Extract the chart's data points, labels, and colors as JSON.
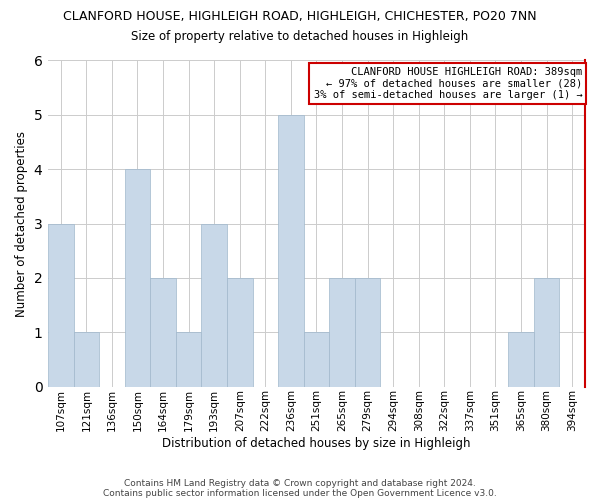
{
  "title": "CLANFORD HOUSE, HIGHLEIGH ROAD, HIGHLEIGH, CHICHESTER, PO20 7NN",
  "subtitle": "Size of property relative to detached houses in Highleigh",
  "xlabel": "Distribution of detached houses by size in Highleigh",
  "ylabel": "Number of detached properties",
  "bin_labels": [
    "107sqm",
    "121sqm",
    "136sqm",
    "150sqm",
    "164sqm",
    "179sqm",
    "193sqm",
    "207sqm",
    "222sqm",
    "236sqm",
    "251sqm",
    "265sqm",
    "279sqm",
    "294sqm",
    "308sqm",
    "322sqm",
    "337sqm",
    "351sqm",
    "365sqm",
    "380sqm",
    "394sqm"
  ],
  "bar_heights": [
    3,
    1,
    0,
    4,
    2,
    1,
    3,
    2,
    0,
    5,
    1,
    2,
    2,
    0,
    0,
    0,
    0,
    0,
    1,
    2,
    0
  ],
  "bar_color": "#c8d8e8",
  "bar_edge_color": "#a0b8cc",
  "ylim": [
    0,
    6
  ],
  "yticks": [
    0,
    1,
    2,
    3,
    4,
    5,
    6
  ],
  "annotation_text": "CLANFORD HOUSE HIGHLEIGH ROAD: 389sqm\n← 97% of detached houses are smaller (28)\n3% of semi-detached houses are larger (1) →",
  "annotation_box_edge_color": "#cc0000",
  "red_line_color": "#cc0000",
  "footer_line1": "Contains HM Land Registry data © Crown copyright and database right 2024.",
  "footer_line2": "Contains public sector information licensed under the Open Government Licence v3.0.",
  "background_color": "#ffffff",
  "grid_color": "#cccccc"
}
